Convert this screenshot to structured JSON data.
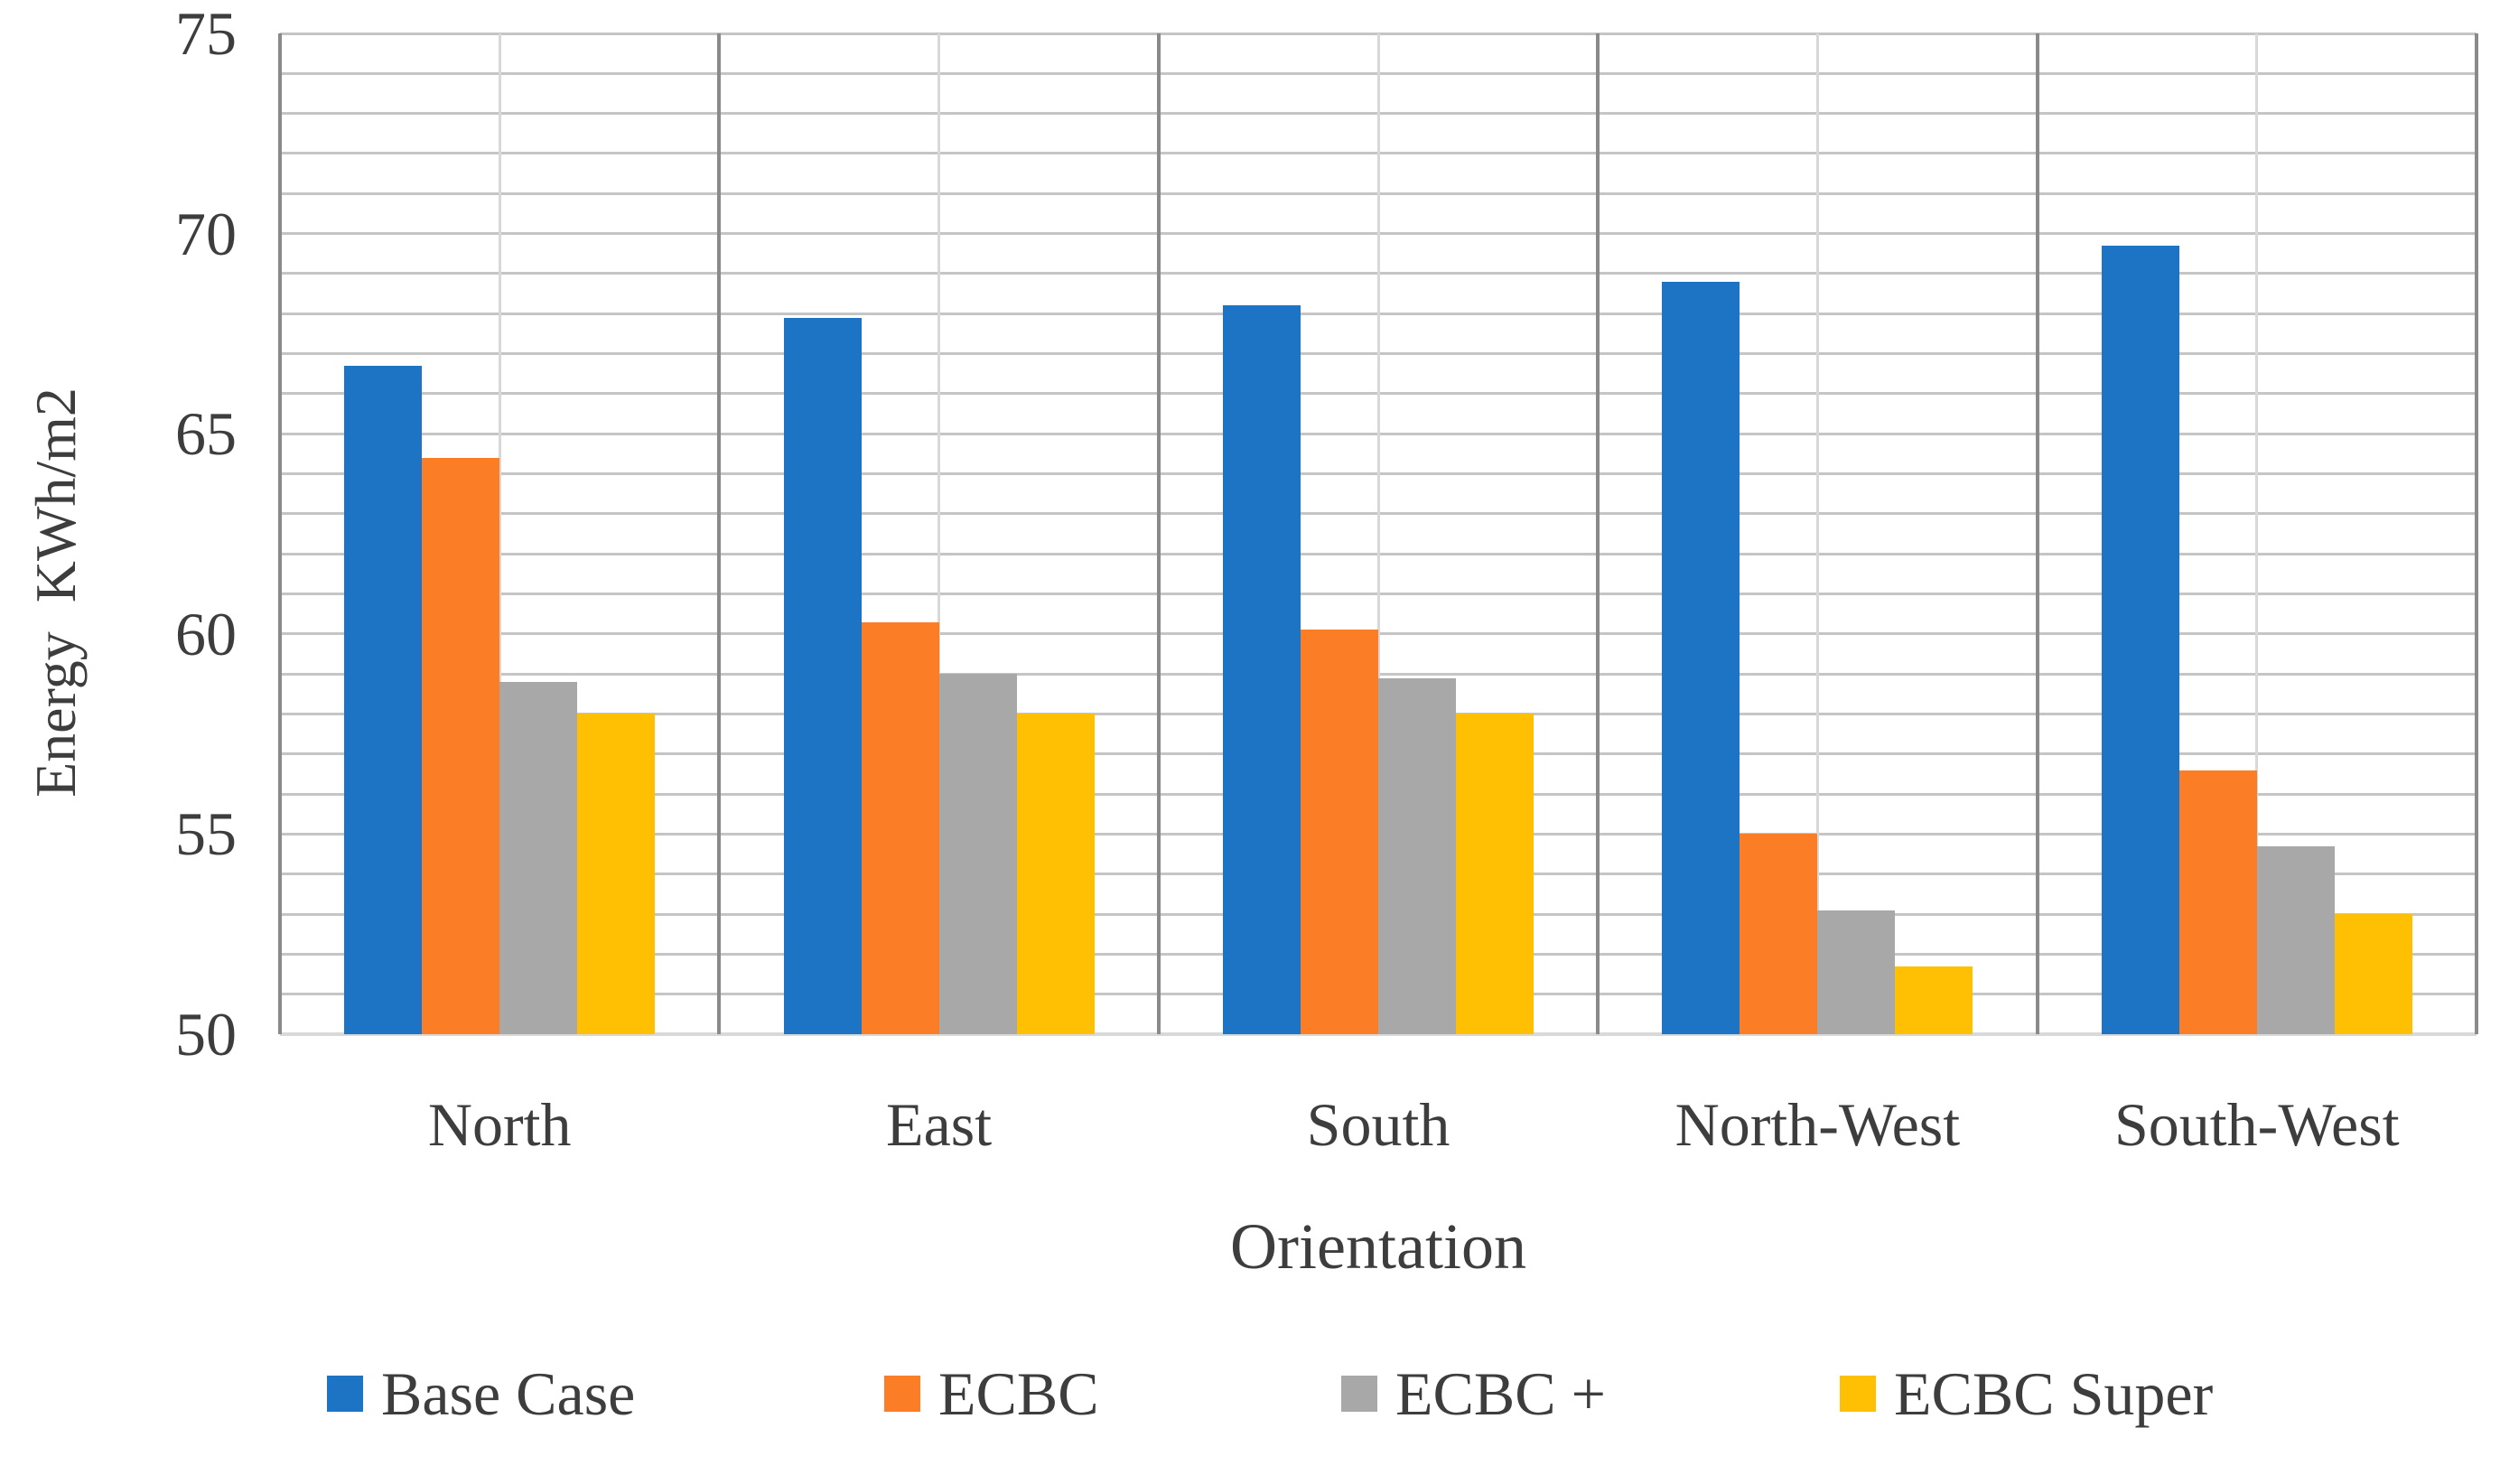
{
  "chart_data": {
    "type": "bar",
    "title": "",
    "categories": [
      "North",
      "East",
      "South",
      "North-West",
      "South-West"
    ],
    "series": [
      {
        "name": "Base Case",
        "color": "#1d73c4",
        "values": [
          66.7,
          67.9,
          68.2,
          68.8,
          69.7
        ]
      },
      {
        "name": "ECBC",
        "color": "#fb7d26",
        "values": [
          64.4,
          60.3,
          60.1,
          55.0,
          56.6
        ]
      },
      {
        "name": "ECBC +",
        "color": "#a8a8a8",
        "values": [
          58.8,
          59.0,
          58.9,
          53.1,
          54.7
        ]
      },
      {
        "name": "ECBC Super",
        "color": "#ffc003",
        "values": [
          58.0,
          58.0,
          58.0,
          51.7,
          53.0
        ]
      }
    ],
    "xlabel": "Orientation",
    "ylabel": "Energy  KWh/m2",
    "ylim": [
      50,
      75
    ],
    "ytick_step": 5,
    "minor_gridline_step": 1,
    "yticks": [
      "75",
      "70",
      "65",
      "60",
      "55",
      "50"
    ],
    "grid": "on",
    "legend_position": "bottom"
  },
  "style": {
    "text_color": "#3d3d3d",
    "gridline_color": "#c5c5c5",
    "category_separator_color": "#8a8a8a",
    "minor_separator_color": "#d8d8d8",
    "axis_line_color": "#d9d9d9",
    "background_color": "#ffffff"
  }
}
